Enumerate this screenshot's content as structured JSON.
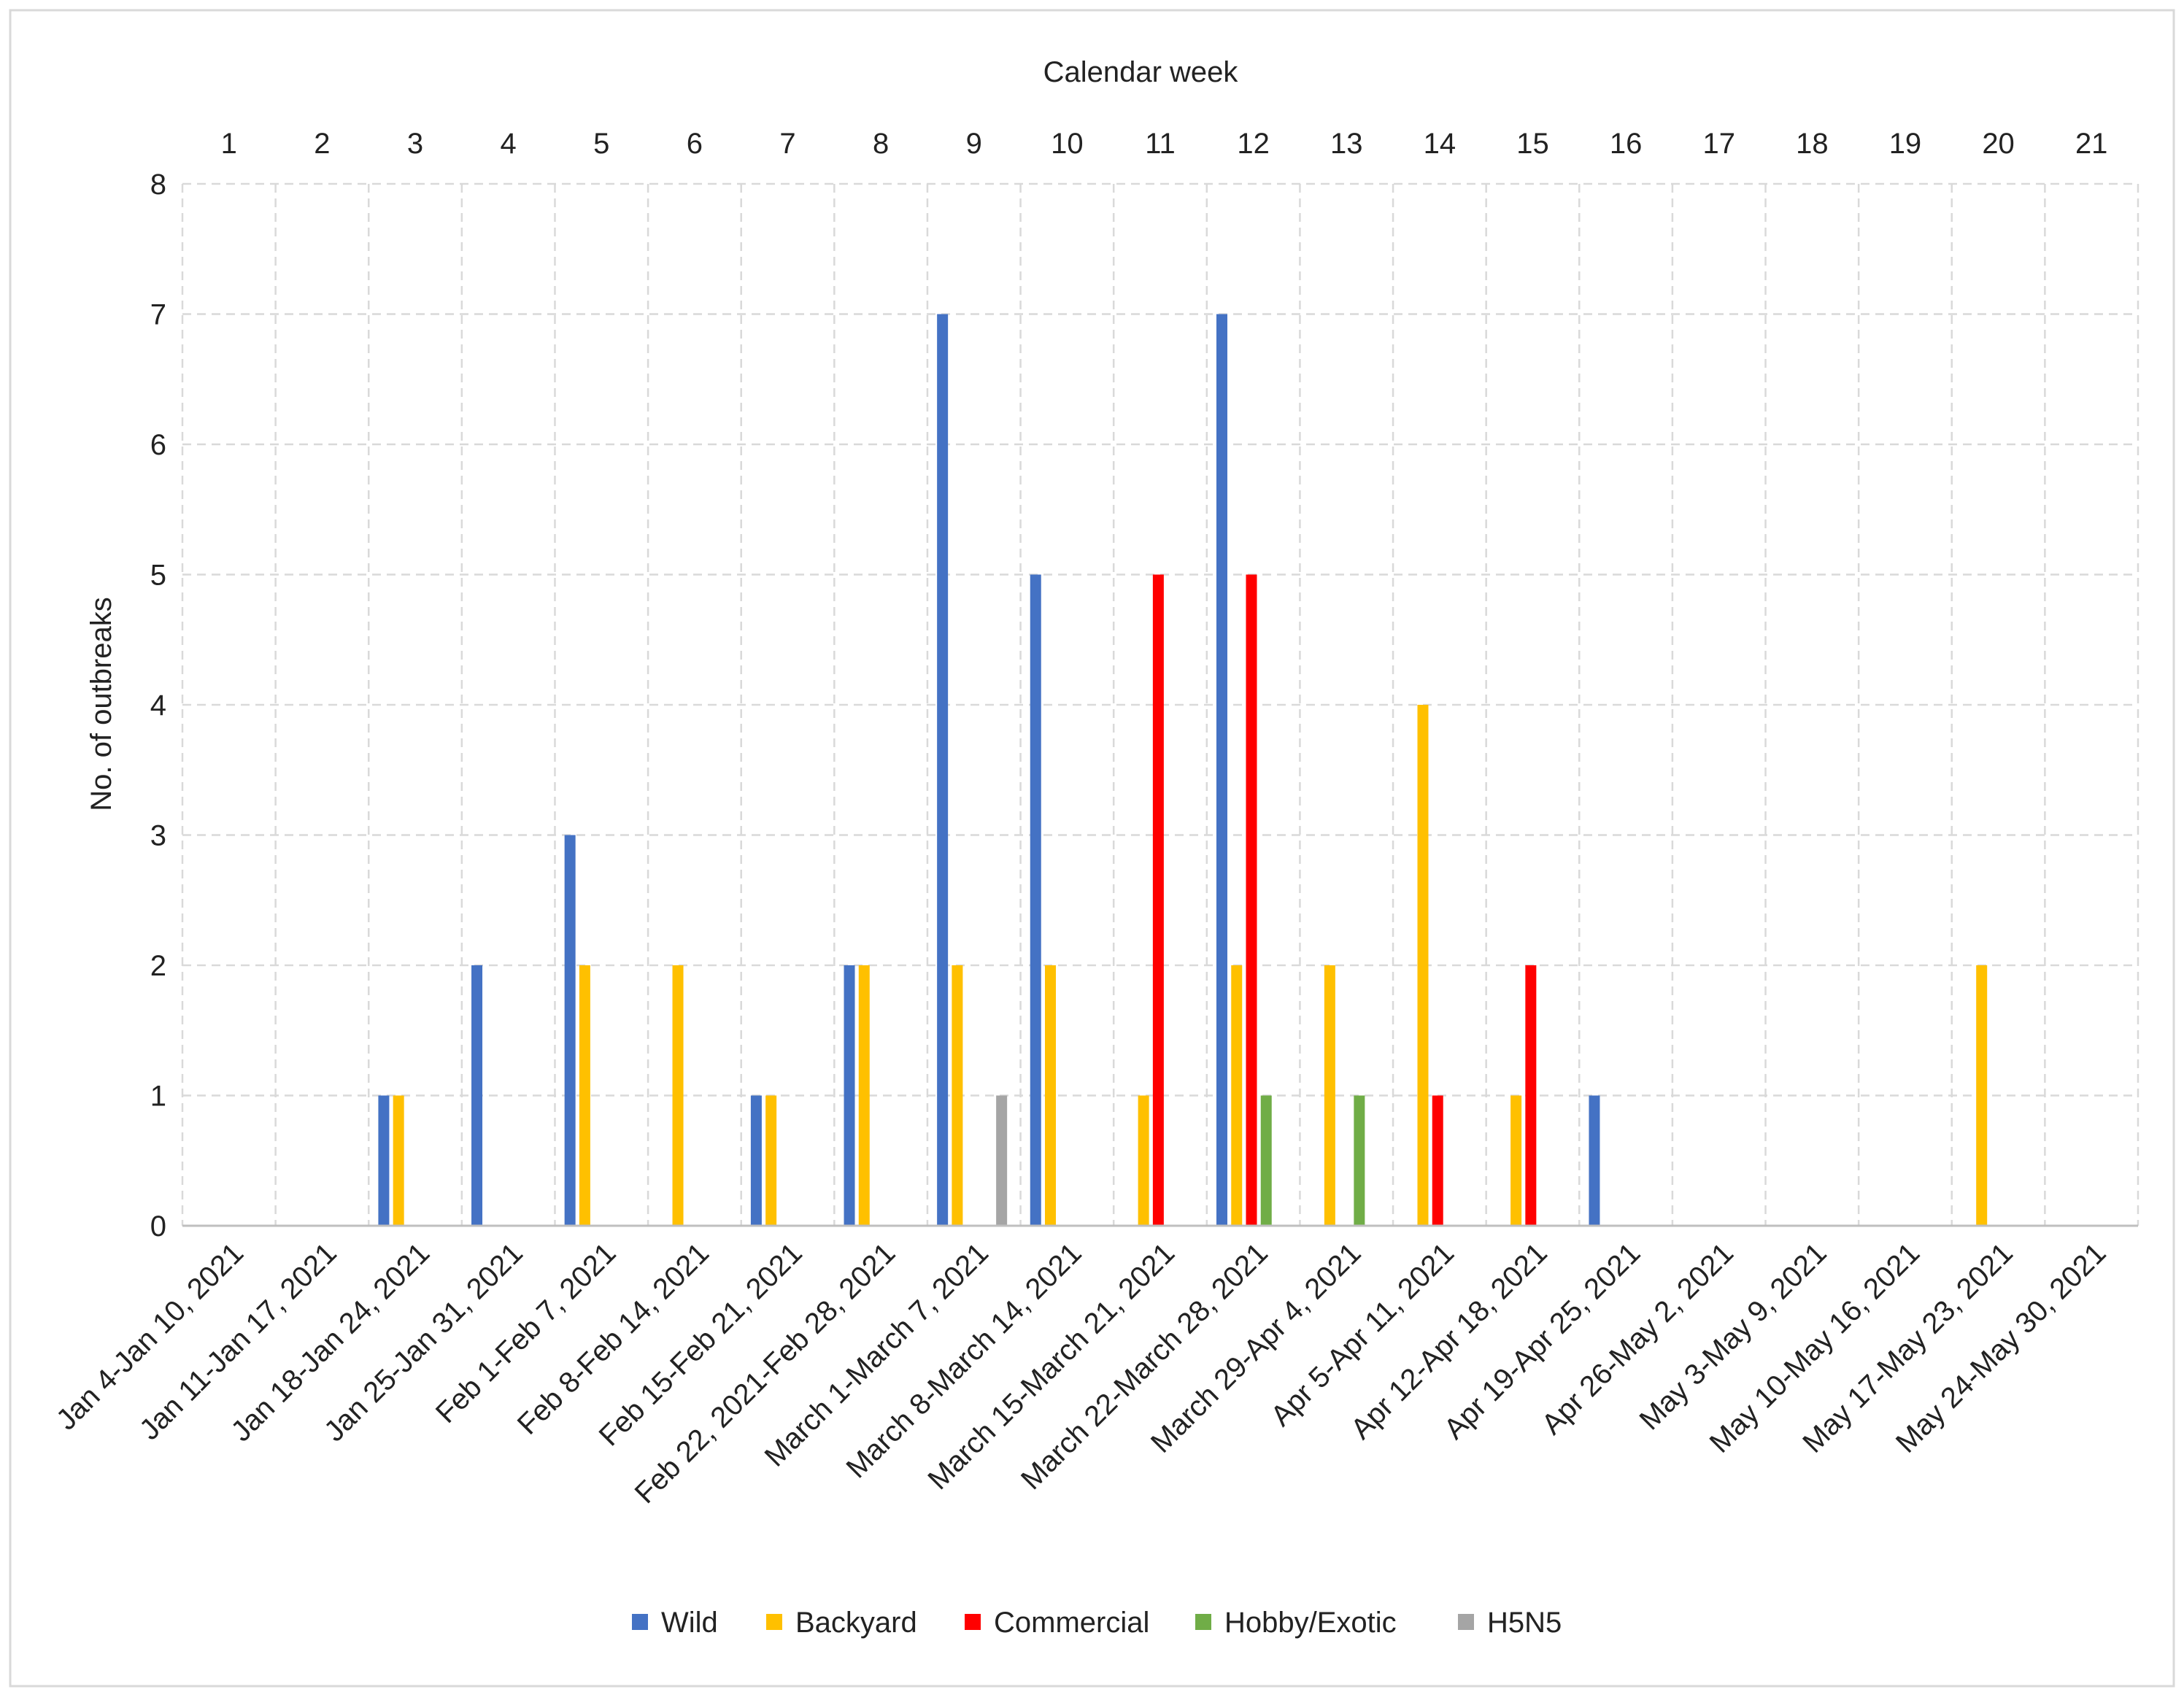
{
  "chart_data": {
    "type": "bar",
    "title": "Calendar week",
    "xlabel": "",
    "ylabel": "No. of outbreaks",
    "ylim": [
      0,
      8
    ],
    "yticks": [
      "0",
      "1",
      "2",
      "3",
      "4",
      "5",
      "6",
      "7",
      "8"
    ],
    "grid": true,
    "legend_position": "bottom-center",
    "weeks": [
      "1",
      "2",
      "3",
      "4",
      "5",
      "6",
      "7",
      "8",
      "9",
      "10",
      "11",
      "12",
      "13",
      "14",
      "15",
      "16",
      "17",
      "18",
      "19",
      "20",
      "21"
    ],
    "categories": [
      "Jan 4-Jan 10, 2021",
      "Jan 11-Jan 17, 2021",
      "Jan 18-Jan 24, 2021",
      "Jan 25-Jan 31, 2021",
      "Feb 1-Feb 7, 2021",
      "Feb 8-Feb 14, 2021",
      "Feb 15-Feb 21, 2021",
      "Feb 22, 2021-Feb 28, 2021",
      "March 1-March 7, 2021",
      "March 8-March 14, 2021",
      "March 15-March 21, 2021",
      "March 22-March 28, 2021",
      "March 29-Apr 4, 2021",
      "Apr 5-Apr 11, 2021",
      "Apr 12-Apr 18, 2021",
      "Apr 19-Apr 25, 2021",
      "Apr 26-May 2, 2021",
      "May 3-May 9, 2021",
      "May 10-May 16, 2021",
      "May 17-May 23, 2021",
      "May 24-May 30, 2021"
    ],
    "series": [
      {
        "name": "Wild",
        "color": "#4472C4",
        "values": [
          0,
          0,
          1,
          2,
          3,
          0,
          1,
          2,
          7,
          5,
          0,
          7,
          0,
          0,
          0,
          1,
          0,
          0,
          0,
          0,
          0
        ]
      },
      {
        "name": "Backyard",
        "color": "#FFC000",
        "values": [
          0,
          0,
          1,
          0,
          2,
          2,
          1,
          2,
          2,
          2,
          1,
          2,
          2,
          4,
          1,
          0,
          0,
          0,
          0,
          2,
          0
        ]
      },
      {
        "name": "Commercial",
        "color": "#FF0000",
        "values": [
          0,
          0,
          0,
          0,
          0,
          0,
          0,
          0,
          0,
          0,
          5,
          5,
          0,
          1,
          2,
          0,
          0,
          0,
          0,
          0,
          0
        ]
      },
      {
        "name": "Hobby/Exotic",
        "color": "#70AD47",
        "values": [
          0,
          0,
          0,
          0,
          0,
          0,
          0,
          0,
          0,
          0,
          0,
          1,
          1,
          0,
          0,
          0,
          0,
          0,
          0,
          0,
          0
        ]
      },
      {
        "name": "H5N5",
        "color": "#A5A5A5",
        "values": [
          0,
          0,
          0,
          0,
          0,
          0,
          0,
          0,
          1,
          0,
          0,
          0,
          0,
          0,
          0,
          0,
          0,
          0,
          0,
          0,
          0
        ]
      }
    ]
  }
}
